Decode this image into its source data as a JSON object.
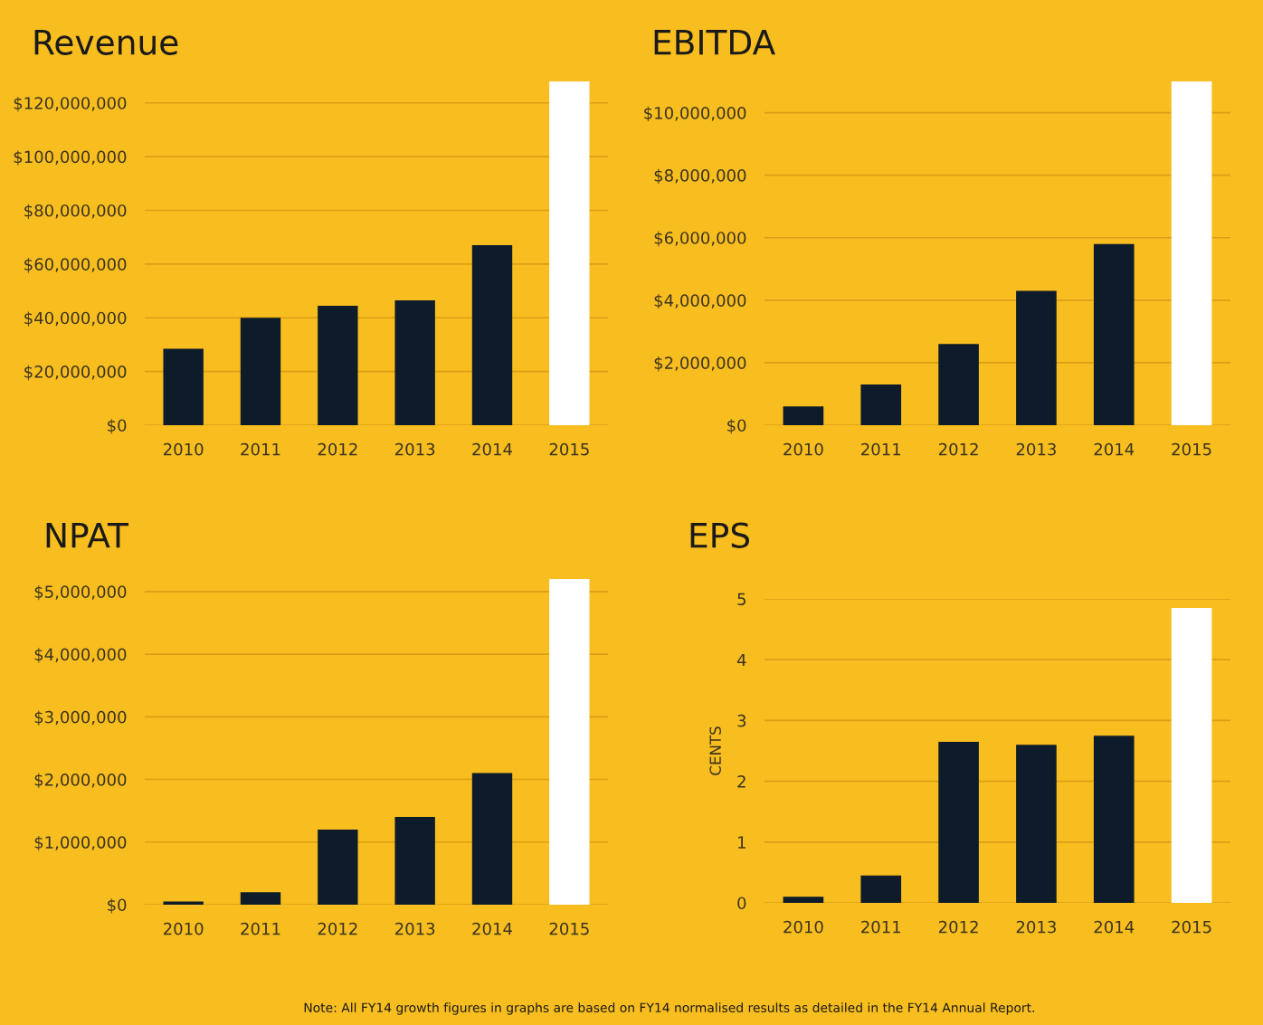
{
  "chart_data": [
    {
      "type": "bar",
      "title": "Revenue",
      "categories": [
        "2010",
        "2011",
        "2012",
        "2013",
        "2014",
        "2015"
      ],
      "values": [
        28500000,
        40000000,
        44500000,
        46500000,
        67000000,
        128000000
      ],
      "colors": [
        "#0d1b2a",
        "#0d1b2a",
        "#0d1b2a",
        "#0d1b2a",
        "#0d1b2a",
        "#ffffff"
      ],
      "ylim": [
        0,
        128000000
      ],
      "yticks": [
        {
          "value": 0,
          "label": "$0"
        },
        {
          "value": 20000000,
          "label": "$20,000,000"
        },
        {
          "value": 40000000,
          "label": "$40,000,000"
        },
        {
          "value": 60000000,
          "label": "$60,000,000"
        },
        {
          "value": 80000000,
          "label": "$80,000,000"
        },
        {
          "value": 100000000,
          "label": "$100,000,000"
        },
        {
          "value": 120000000,
          "label": "$120,000,000"
        }
      ],
      "grid": "y"
    },
    {
      "type": "bar",
      "title": "EBITDA",
      "categories": [
        "2010",
        "2011",
        "2012",
        "2013",
        "2014",
        "2015"
      ],
      "values": [
        600000,
        1300000,
        2600000,
        4300000,
        5800000,
        11000000
      ],
      "colors": [
        "#0d1b2a",
        "#0d1b2a",
        "#0d1b2a",
        "#0d1b2a",
        "#0d1b2a",
        "#ffffff"
      ],
      "ylim": [
        0,
        11000000
      ],
      "yticks": [
        {
          "value": 0,
          "label": "$0"
        },
        {
          "value": 2000000,
          "label": "$2,000,000"
        },
        {
          "value": 4000000,
          "label": "$4,000,000"
        },
        {
          "value": 6000000,
          "label": "$6,000,000"
        },
        {
          "value": 8000000,
          "label": "$8,000,000"
        },
        {
          "value": 10000000,
          "label": "$10,000,000"
        }
      ],
      "grid": "y"
    },
    {
      "type": "bar",
      "title": "NPAT",
      "categories": [
        "2010",
        "2011",
        "2012",
        "2013",
        "2014",
        "2015"
      ],
      "values": [
        50000,
        200000,
        1200000,
        1400000,
        2100000,
        5200000
      ],
      "colors": [
        "#0d1b2a",
        "#0d1b2a",
        "#0d1b2a",
        "#0d1b2a",
        "#0d1b2a",
        "#ffffff"
      ],
      "ylim": [
        0,
        5200000
      ],
      "yticks": [
        {
          "value": 0,
          "label": "$0"
        },
        {
          "value": 1000000,
          "label": "$1,000,000"
        },
        {
          "value": 2000000,
          "label": "$2,000,000"
        },
        {
          "value": 3000000,
          "label": "$3,000,000"
        },
        {
          "value": 4000000,
          "label": "$4,000,000"
        },
        {
          "value": 5000000,
          "label": "$5,000,000"
        }
      ],
      "grid": "y"
    },
    {
      "type": "bar",
      "title": "EPS",
      "ylabel": "CENTS",
      "categories": [
        "2010",
        "2011",
        "2012",
        "2013",
        "2014",
        "2015"
      ],
      "values": [
        0.1,
        0.45,
        2.65,
        2.6,
        2.75,
        4.85
      ],
      "colors": [
        "#0d1b2a",
        "#0d1b2a",
        "#0d1b2a",
        "#0d1b2a",
        "#0d1b2a",
        "#ffffff"
      ],
      "ylim": [
        0,
        5
      ],
      "yticks": [
        0,
        1,
        2,
        3,
        4,
        5
      ],
      "grid": "y",
      "annotations": [
        "Note: All FY14 growth figures in graphs are based on FY14 normalised results as detailed in the FY14 Annual Report."
      ]
    }
  ]
}
